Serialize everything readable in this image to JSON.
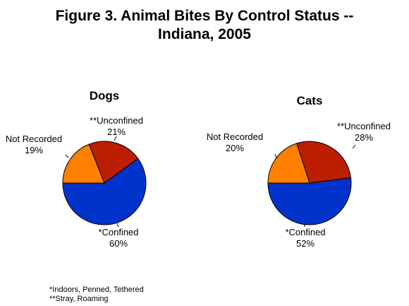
{
  "title_line1": "Figure 3. Animal Bites By Control Status --",
  "title_line2": "Indiana, 2005",
  "colors": {
    "confined": "#0033cc",
    "unconfined": "#bb1e00",
    "not_recorded": "#ff8000"
  },
  "chart_data": [
    {
      "type": "pie",
      "title": "Dogs",
      "categories": [
        "*Confined",
        "**Unconfined",
        "Not Recorded"
      ],
      "values": [
        60,
        21,
        19
      ],
      "value_labels": [
        "60%",
        "21%",
        "19%"
      ]
    },
    {
      "type": "pie",
      "title": "Cats",
      "categories": [
        "*Confined",
        "**Unconfined",
        "Not Recorded"
      ],
      "values": [
        52,
        28,
        20
      ],
      "value_labels": [
        "52%",
        "28%",
        "20%"
      ]
    }
  ],
  "footnotes": [
    "*Indoors, Penned, Tethered",
    "**Stray, Roaming"
  ]
}
